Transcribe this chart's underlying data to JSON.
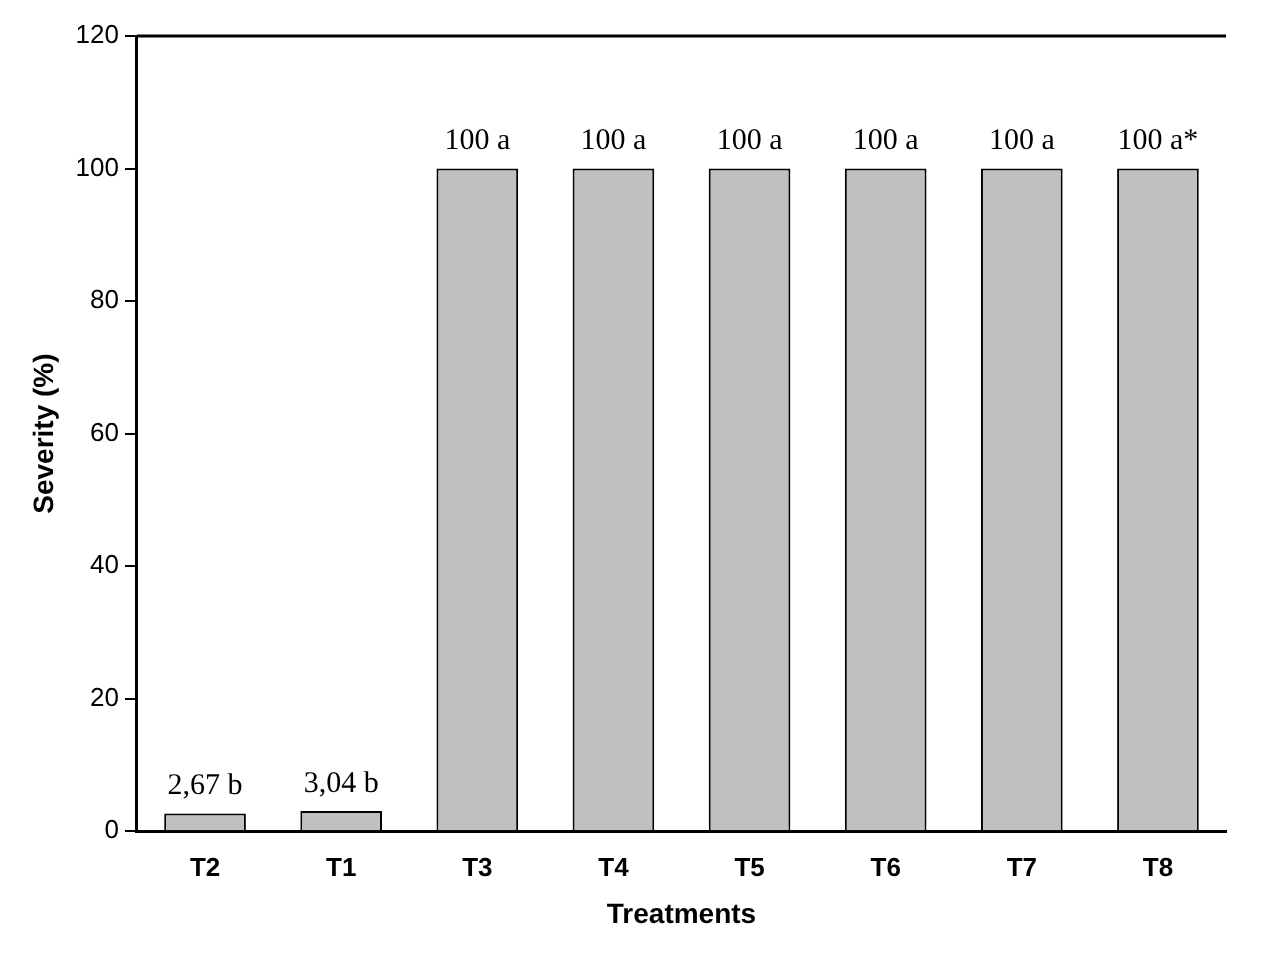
{
  "chart_data": {
    "type": "bar",
    "xlabel": "Treatments",
    "ylabel": "Severity (%)",
    "categories": [
      "T2",
      "T1",
      "T3",
      "T4",
      "T5",
      "T6",
      "T7",
      "T8"
    ],
    "values": [
      2.67,
      3.04,
      100,
      100,
      100,
      100,
      100,
      100
    ],
    "value_labels": [
      "2,67 b",
      "3,04 b",
      "100 a",
      "100 a",
      "100 a",
      "100 a",
      "100 a",
      "100 a*"
    ],
    "color": "#c0c0c0",
    "ylim": [
      0,
      120
    ],
    "yticks": [
      0,
      20,
      40,
      60,
      80,
      100,
      120
    ],
    "grid": false,
    "legend": false
  }
}
